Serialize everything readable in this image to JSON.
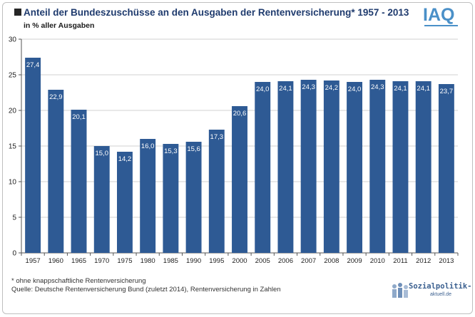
{
  "title": "Anteil der Bundeszuschüsse an den Ausgaben der Rentenversicherung* 1957 - 2013",
  "subtitle": "in % aller Ausgaben",
  "logo": {
    "text": "IAQ",
    "color": "#4a90c8"
  },
  "footnote": "* ohne knappschaftliche Rentenversicherung",
  "source": "Quelle: Deutsche Rentenversicherung Bund (zuletzt 2014), Rentenversicherung in Zahlen",
  "badge": {
    "text": "Sozialpolitik-",
    "sub": "aktuell.de"
  },
  "colors": {
    "bar": "#2e5a94",
    "title": "#1f3b6e",
    "grid": "#d0d0d0"
  },
  "chart_data": {
    "type": "bar",
    "categories": [
      "1957",
      "1960",
      "1965",
      "1970",
      "1975",
      "1980",
      "1985",
      "1990",
      "1995",
      "2000",
      "2005",
      "2006",
      "2007",
      "2008",
      "2009",
      "2010",
      "2011",
      "2012",
      "2013"
    ],
    "values": [
      27.4,
      22.9,
      20.1,
      15.0,
      14.2,
      16.0,
      15.3,
      15.6,
      17.3,
      20.6,
      24.0,
      24.1,
      24.3,
      24.2,
      24.0,
      24.3,
      24.1,
      24.1,
      23.7
    ],
    "value_labels": [
      "27,4",
      "22,9",
      "20,1",
      "15,0",
      "14,2",
      "16,0",
      "15,3",
      "15,6",
      "17,3",
      "20,6",
      "24,0",
      "24,1",
      "24,3",
      "24,2",
      "24,0",
      "24,3",
      "24,1",
      "24,1",
      "23,7"
    ],
    "yticks": [
      0,
      5,
      10,
      15,
      20,
      25,
      30
    ],
    "ylim": [
      0,
      30
    ],
    "grid": true,
    "title": "Anteil der Bundeszuschüsse an den Ausgaben der Rentenversicherung* 1957 - 2013",
    "ylabel": "in % aller Ausgaben",
    "xlabel": ""
  }
}
